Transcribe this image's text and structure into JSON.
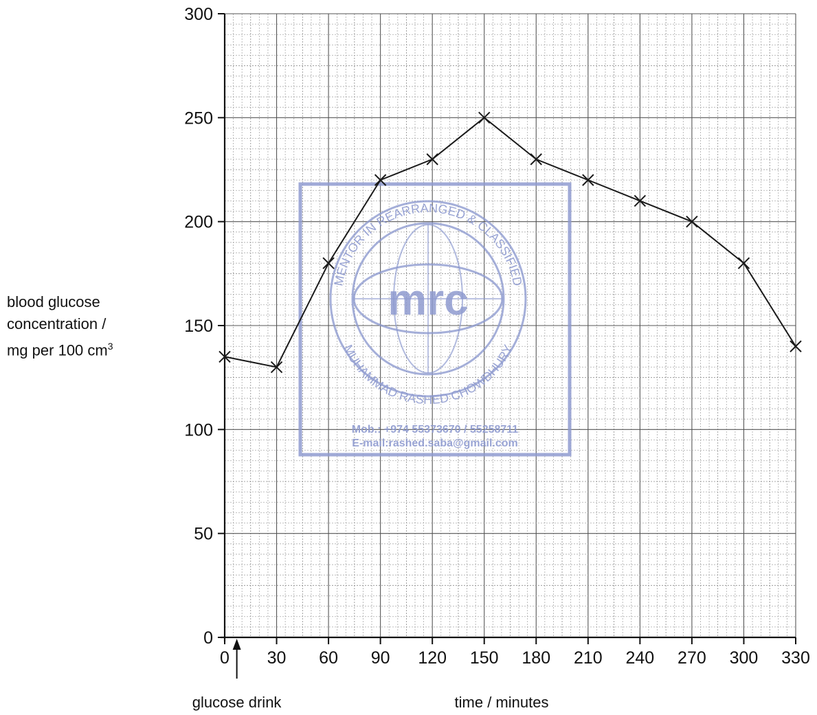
{
  "chart_data": {
    "type": "line",
    "title": "",
    "xlabel": "time / minutes",
    "ylabel_lines": [
      "blood glucose",
      "concentration /",
      "mg per 100 cm"
    ],
    "ylabel_superscript": "3",
    "xlim": [
      0,
      330
    ],
    "ylim": [
      0,
      300
    ],
    "x_ticks": [
      0,
      30,
      60,
      90,
      120,
      150,
      180,
      210,
      240,
      270,
      300,
      330
    ],
    "y_ticks": [
      0,
      50,
      100,
      150,
      200,
      250,
      300
    ],
    "grid": true,
    "series": [
      {
        "x": [
          0,
          30,
          60,
          90,
          120,
          150,
          180,
          210,
          240,
          270,
          300,
          330
        ],
        "values": [
          135,
          130,
          180,
          220,
          230,
          250,
          230,
          220,
          210,
          200,
          180,
          140
        ],
        "marker": "x",
        "color": "#1a1a1a"
      }
    ],
    "annotations": [
      {
        "text": "glucose drink",
        "x": 7,
        "arrow": "up"
      }
    ]
  },
  "watermark": {
    "monogram": "mrc",
    "ring_top": "MENTOR IN REARRANGED & CLASSIFIED",
    "ring_bottom": "MUHAMMAD RASHED CHOWDHURY",
    "line1": "Mob.: +974 55373670 / 55258711",
    "line2": "E-mail:rashed.saba@gmail.com",
    "color": "#8f9bd0"
  }
}
